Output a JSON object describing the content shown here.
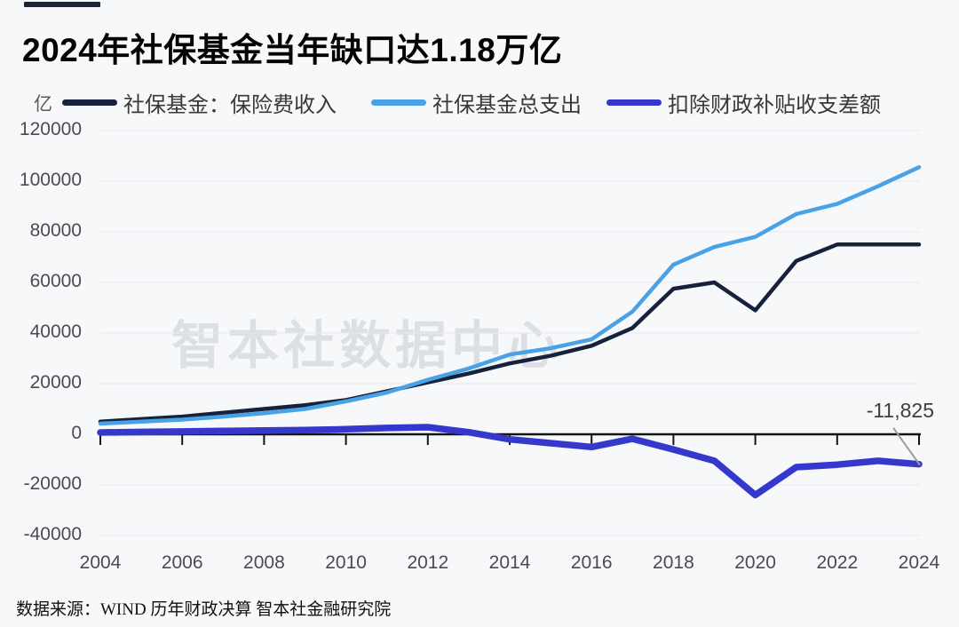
{
  "header": {
    "title": "2024年社保基金当年缺口达1.18万亿"
  },
  "chart_data": {
    "type": "line",
    "title": "2024年社保基金当年缺口达1.18万亿",
    "unit_label": "亿",
    "xlabel": "",
    "ylabel": "亿",
    "xlim": [
      2004,
      2024
    ],
    "ylim": [
      -40000,
      120000
    ],
    "grid": "horizontal",
    "legend_position": "top",
    "x": [
      2004,
      2005,
      2006,
      2007,
      2008,
      2009,
      2010,
      2011,
      2012,
      2013,
      2014,
      2015,
      2016,
      2017,
      2018,
      2019,
      2020,
      2021,
      2022,
      2023,
      2024
    ],
    "series": [
      {
        "key": "income",
        "name": "社保基金：保险费收入",
        "color": "#16223c",
        "width": 4.5,
        "values": [
          5000,
          6000,
          7000,
          8500,
          10000,
          11500,
          13500,
          17000,
          20500,
          24000,
          28000,
          31000,
          35000,
          42000,
          57500,
          60000,
          49000,
          68500,
          75000,
          75000,
          75000
        ]
      },
      {
        "key": "expenditure",
        "name": "社保基金总支出",
        "color": "#49a2e6",
        "width": 4.5,
        "values": [
          4200,
          5000,
          5800,
          7000,
          8300,
          10000,
          13000,
          16500,
          21500,
          26000,
          31500,
          34000,
          37500,
          48500,
          67000,
          74000,
          78000,
          87000,
          91000,
          98000,
          105500
        ]
      },
      {
        "key": "balance",
        "name": "扣除财政补贴收支差额",
        "color": "#3438cd",
        "width": 7.5,
        "values": [
          700,
          900,
          1100,
          1300,
          1500,
          1700,
          2000,
          2500,
          2800,
          800,
          -2000,
          -3500,
          -5000,
          -1800,
          -6000,
          -10500,
          -24000,
          -13000,
          -12000,
          -10500,
          -11825
        ]
      }
    ],
    "y_ticks": [
      {
        "value": 120000,
        "label": "120000"
      },
      {
        "value": 100000,
        "label": "100000"
      },
      {
        "value": 80000,
        "label": "80000"
      },
      {
        "value": 60000,
        "label": "60000"
      },
      {
        "value": 40000,
        "label": "40000"
      },
      {
        "value": 20000,
        "label": "20000"
      },
      {
        "value": 0,
        "label": "0"
      },
      {
        "value": -20000,
        "label": "-20000"
      },
      {
        "value": -40000,
        "label": "-40000"
      }
    ],
    "x_tick_years": [
      2004,
      2006,
      2008,
      2010,
      2012,
      2014,
      2016,
      2018,
      2020,
      2022,
      2024
    ],
    "annotation": {
      "text": "-11,825",
      "value": -11825,
      "year": 2024,
      "series": "扣除财政补贴收支差额"
    },
    "watermark": "智本社数据中心",
    "colors": {
      "income": "#16223c",
      "expenditure": "#49a2e6",
      "balance": "#3438cd",
      "axis": "#141414",
      "grid": "#e8e9ed",
      "annotation_line": "#9b9b9b",
      "background": "#f7f8fa"
    }
  },
  "footer": {
    "source": "数据来源：WIND 历年财政决算 智本社金融研究院"
  }
}
